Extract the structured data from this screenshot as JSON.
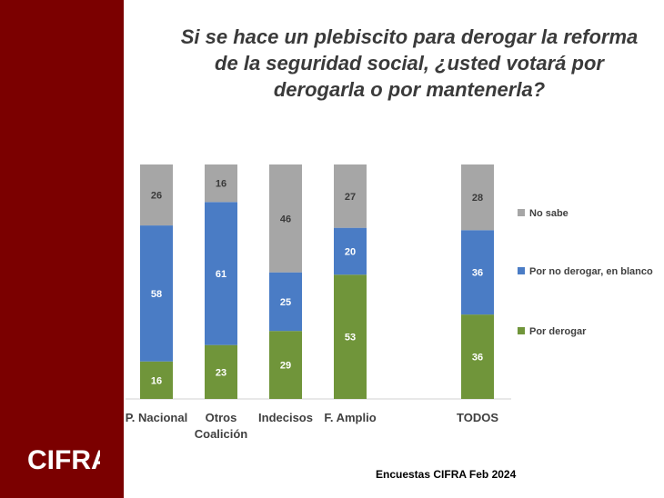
{
  "chart_data": {
    "type": "bar",
    "stacked": true,
    "title_lines": [
      "Si se hace un plebiscito para derogar la reforma",
      "de la seguridad social, ¿usted votará por",
      "derogarla o por mantenerla?"
    ],
    "categories": [
      [
        "P. Nacional"
      ],
      [
        "Otros",
        "Coalición"
      ],
      [
        "Indecisos"
      ],
      [
        "F. Amplio"
      ],
      [
        "TODOS"
      ]
    ],
    "series": [
      {
        "name": "Por derogar",
        "color": "#70953a",
        "values": [
          16,
          23,
          29,
          53,
          36
        ]
      },
      {
        "name": "Por no derogar, en blanco",
        "color": "#4a7cc5",
        "values": [
          58,
          61,
          25,
          20,
          36
        ]
      },
      {
        "name": "No sabe",
        "color": "#a6a6a6",
        "values": [
          26,
          16,
          46,
          27,
          28
        ]
      }
    ],
    "legend_order": [
      "No sabe",
      "Por no derogar, en blanco",
      "Por derogar"
    ],
    "legend_position": "right",
    "ylim": [
      0,
      100
    ],
    "grid": false
  },
  "footer": "Encuestas CIFRA Feb 2024",
  "brand": "CIFRA"
}
